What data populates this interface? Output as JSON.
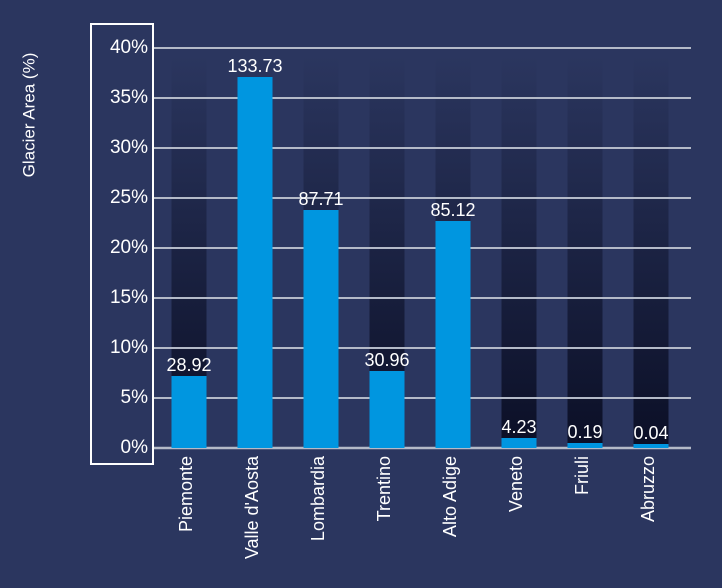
{
  "chart_data": {
    "type": "bar",
    "ylabel": "Glacier Area (%)",
    "ylim": [
      0,
      40
    ],
    "yticks": [
      "0%",
      "5%",
      "10%",
      "15%",
      "20%",
      "25%",
      "30%",
      "35%",
      "40%"
    ],
    "categories": [
      "Piemonte",
      "Valle d'Aosta",
      "Lombardia",
      "Trentino",
      "Alto Adige",
      "Veneto",
      "Friuli",
      "Abruzzo"
    ],
    "values": [
      7.2,
      37.1,
      23.8,
      7.7,
      22.7,
      1.0,
      0.5,
      0.4
    ],
    "data_labels": [
      "28.92",
      "133.73",
      "87.71",
      "30.96",
      "85.12",
      "4.23",
      "0.19",
      "0.04"
    ],
    "grid": true,
    "colors": {
      "background": "#2b365f",
      "bar": "#0096e0",
      "shadow_top": "#2b365f",
      "shadow_bottom": "#0b0f26",
      "grid": "#b4bac8",
      "text": "#ffffff",
      "frame": "#ffffff"
    }
  }
}
